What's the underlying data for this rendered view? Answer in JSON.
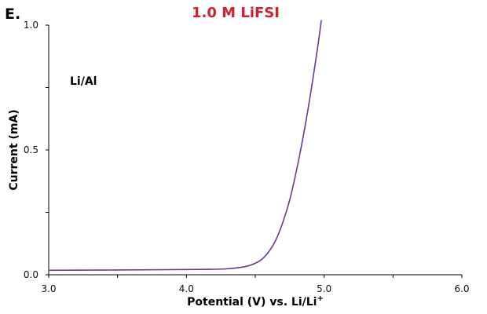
{
  "panel_label": "E.",
  "chart_data": {
    "type": "line",
    "title": "1.0 M LiFSI",
    "title_color": "#d0202e",
    "xlabel_main": "Potential (V) vs. Li/Li",
    "xlabel_sup": "+",
    "ylabel": "Current (mA)",
    "xlim": [
      3.0,
      6.0
    ],
    "ylim": [
      0.0,
      1.0
    ],
    "x_ticks": [
      "3.0",
      "4.0",
      "5.0",
      "6.0"
    ],
    "x_tick_values": [
      3.0,
      4.0,
      5.0,
      6.0
    ],
    "x_minor_step": 0.5,
    "y_ticks": [
      "0.0",
      "0.5",
      "1.0"
    ],
    "y_tick_values": [
      0.0,
      0.5,
      1.0
    ],
    "y_minor_step": 0.25,
    "grid": false,
    "annotation": "Li/Al",
    "line_color": "#6b3a8c",
    "series": [
      {
        "x": [
          3.0,
          3.5,
          4.0,
          4.2,
          4.3,
          4.4,
          4.45,
          4.5,
          4.55,
          4.6,
          4.65,
          4.7,
          4.75,
          4.8,
          4.85,
          4.9,
          4.95,
          4.98
        ],
        "y": [
          0.018,
          0.019,
          0.021,
          0.022,
          0.024,
          0.03,
          0.036,
          0.046,
          0.063,
          0.094,
          0.14,
          0.21,
          0.3,
          0.42,
          0.56,
          0.72,
          0.9,
          1.02
        ]
      }
    ]
  }
}
